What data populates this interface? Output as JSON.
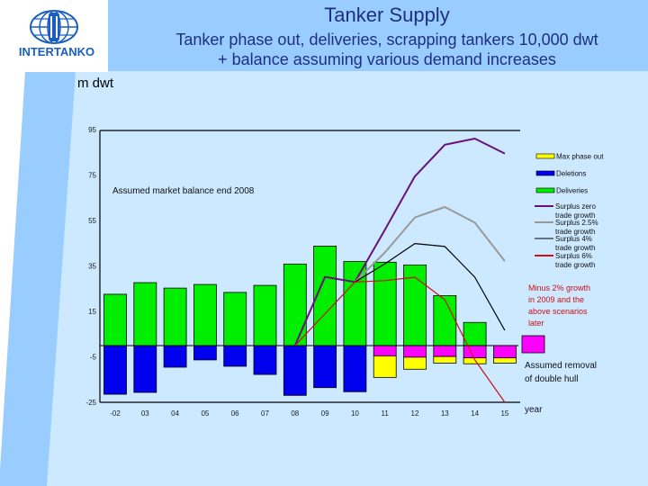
{
  "header": {
    "logo_text": "INTERTANKO",
    "title": "Tanker Supply",
    "subtitle_line1": "Tanker phase out, deliveries, scrapping tankers 10,000 dwt",
    "subtitle_line2": "+ balance assuming various demand increases",
    "unit_label": "m dwt"
  },
  "colors": {
    "header_band": "#99ccff",
    "background": "#cce9ff",
    "title_text": "#1f2f80",
    "deliveries": "#00ee00",
    "deletions": "#0000ee",
    "max_phase_out": "#ffff00",
    "double_hull": "#ff00ff",
    "surplus_zero": "#6a0f7a",
    "surplus_2_5": "#999999",
    "surplus_4": "#000000",
    "surplus_6": "#cc1111"
  },
  "chart_data": {
    "type": "bar",
    "title": "Tanker Supply",
    "subtitle": "Tanker phase out, deliveries, scrapping tankers 10,000 dwt + balance assuming various demand increases",
    "xlabel": "year",
    "ylabel": "m dwt",
    "ylim": [
      -25,
      95
    ],
    "yticks": [
      95,
      75,
      55,
      35,
      15,
      -5,
      -25
    ],
    "grid": false,
    "legend_position": "right",
    "categories": [
      "-02",
      "03",
      "04",
      "05",
      "06",
      "07",
      "08",
      "09",
      "10",
      "11",
      "12",
      "13",
      "14",
      "15"
    ],
    "bar_series": [
      {
        "name": "Deliveries",
        "color": "#00ee00",
        "values": [
          22.6,
          27.7,
          25.3,
          26.9,
          23.4,
          26.5,
          35.9,
          43.8,
          37.0,
          36.7,
          35.5,
          22.0,
          10.2,
          0
        ]
      },
      {
        "name": "Deletions",
        "color": "#0000ee",
        "values": [
          -21.4,
          -20.6,
          -9.5,
          -6.3,
          -9.1,
          -12.7,
          -21.9,
          -18.5,
          -20.3,
          0,
          0,
          0,
          0,
          0
        ]
      },
      {
        "name": "Assumed removal of double hull",
        "color": "#ff00ff",
        "values": [
          0,
          0,
          0,
          0,
          0,
          0,
          0,
          0,
          0,
          -4.5,
          -5.1,
          -4.8,
          -5.4,
          -5.4
        ]
      },
      {
        "name": "Max phase out",
        "color": "#ffff00",
        "values": [
          0,
          0,
          0,
          0,
          0,
          0,
          0,
          0,
          0,
          -9.5,
          -5.3,
          -2.9,
          -2.6,
          -2.3
        ]
      }
    ],
    "line_series": [
      {
        "name": "Surplus zero trade growth",
        "color": "#6a0f7a",
        "width": 2,
        "values": [
          null,
          null,
          null,
          null,
          null,
          null,
          0,
          30.2,
          28.0,
          51.0,
          74.5,
          88.4,
          91.1,
          84.5
        ]
      },
      {
        "name": "Surplus 2.5% trade growth",
        "color": "#999999",
        "width": 2,
        "values": [
          null,
          null,
          null,
          null,
          null,
          null,
          null,
          null,
          28.0,
          41.0,
          56.4,
          61.0,
          54.1,
          37.2
        ]
      },
      {
        "name": "Surplus 4% trade growth",
        "color": "#000000",
        "width": 1.2,
        "values": [
          null,
          null,
          null,
          null,
          null,
          null,
          null,
          null,
          28.0,
          36.0,
          44.9,
          43.6,
          30.1,
          6.7
        ]
      },
      {
        "name": "Surplus 6% trade growth",
        "color": "#cc1111",
        "width": 1.2,
        "values": [
          null,
          null,
          null,
          null,
          null,
          null,
          0,
          null,
          28.0,
          28.6,
          30.1,
          20.2,
          -6.3,
          -30.0
        ]
      }
    ],
    "annotations": [
      "Assumed market balance end 2008",
      "Minus 2% growth in 2009 and the above scenarios later",
      "Assumed removal of double hull"
    ]
  },
  "legend": {
    "items": [
      {
        "label": "Max phase out",
        "color": "#ffff00",
        "kind": "box"
      },
      {
        "label": "Deletions",
        "color": "#0000ee",
        "kind": "box"
      },
      {
        "label": "Deliveries",
        "color": "#00ee00",
        "kind": "box"
      },
      {
        "label_line1": "Surplus zero",
        "label_line2": "trade growth",
        "color": "#6a0f7a",
        "kind": "line"
      },
      {
        "label_line1": "Surplus 2.5%",
        "label_line2": "trade growth",
        "color": "#999999",
        "kind": "line"
      },
      {
        "label_line1": "Surplus 4%",
        "label_line2": "trade growth",
        "color": "#000000",
        "kind": "line"
      },
      {
        "label_line1": "Surplus 6%",
        "label_line2": "trade growth",
        "color": "#cc1111",
        "kind": "line"
      }
    ]
  },
  "annotations": {
    "market_balance": "Assumed market balance end 2008",
    "minus_growth_lines": [
      "Minus 2% growth",
      "in 2009 and the",
      "above scenarios",
      "later"
    ],
    "double_hull_lines": [
      "Assumed removal",
      "of double hull"
    ],
    "x_axis_label": "year"
  }
}
